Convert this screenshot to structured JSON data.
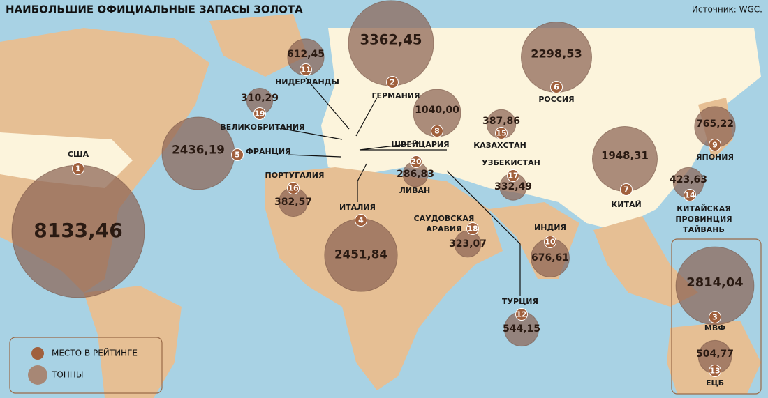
{
  "header": {
    "title": "НАИБОЛЬШИЕ ОФИЦИАЛЬНЫЕ ЗАПАСЫ ЗОЛОТА",
    "source": "Источник: WGC."
  },
  "legend": {
    "rank": "МЕСТО В РЕЙТИНГЕ",
    "tonnes": "ТОННЫ"
  },
  "countries": [
    {
      "name": [
        "США"
      ],
      "rank": 1,
      "tonnes": {
        "value": 8133.46,
        "label": "8133,46"
      }
    },
    {
      "name": [
        "ГЕРМАНИЯ"
      ],
      "rank": 2,
      "tonnes": {
        "value": 3362.45,
        "label": "3362,45"
      }
    },
    {
      "name": [
        "МВФ"
      ],
      "rank": 3,
      "tonnes": {
        "value": 2814.04,
        "label": "2814,04"
      }
    },
    {
      "name": [
        "ИТАЛИЯ"
      ],
      "rank": 4,
      "tonnes": {
        "value": 2451.84,
        "label": "2451,84"
      }
    },
    {
      "name": [
        "ФРАНЦИЯ"
      ],
      "rank": 5,
      "tonnes": {
        "value": 2436.19,
        "label": "2436,19"
      }
    },
    {
      "name": [
        "РОССИЯ"
      ],
      "rank": 6,
      "tonnes": {
        "value": 2298.53,
        "label": "2298,53"
      }
    },
    {
      "name": [
        "КИТАЙ"
      ],
      "rank": 7,
      "tonnes": {
        "value": 1948.31,
        "label": "1948,31"
      }
    },
    {
      "name": [
        "ШВЕЙЦАРИЯ"
      ],
      "rank": 8,
      "tonnes": {
        "value": 1040.0,
        "label": "1040,00"
      }
    },
    {
      "name": [
        "ЯПОНИЯ"
      ],
      "rank": 9,
      "tonnes": {
        "value": 765.22,
        "label": "765,22"
      }
    },
    {
      "name": [
        "ИНДИЯ"
      ],
      "rank": 10,
      "tonnes": {
        "value": 676.61,
        "label": "676,61"
      }
    },
    {
      "name": [
        "НИДЕРЛАНДЫ"
      ],
      "rank": 11,
      "tonnes": {
        "value": 612.45,
        "label": "612,45"
      }
    },
    {
      "name": [
        "ТУРЦИЯ"
      ],
      "rank": 12,
      "tonnes": {
        "value": 544.15,
        "label": "544,15"
      }
    },
    {
      "name": [
        "ЕЦБ"
      ],
      "rank": 13,
      "tonnes": {
        "value": 504.77,
        "label": "504,77"
      }
    },
    {
      "name": [
        "КИТАЙСКАЯ",
        "ПРОВИНЦИЯ",
        "ТАЙВАНЬ"
      ],
      "rank": 14,
      "tonnes": {
        "value": 423.63,
        "label": "423,63"
      }
    },
    {
      "name": [
        "КАЗАХСТАН"
      ],
      "rank": 15,
      "tonnes": {
        "value": 387.86,
        "label": "387,86"
      }
    },
    {
      "name": [
        "ПОРТУГАЛИЯ"
      ],
      "rank": 16,
      "tonnes": {
        "value": 382.57,
        "label": "382,57"
      }
    },
    {
      "name": [
        "УЗБЕКИСТАН"
      ],
      "rank": 17,
      "tonnes": {
        "value": 332.49,
        "label": "332,49"
      }
    },
    {
      "name": [
        "САУДОВСКАЯ",
        "АРАВИЯ"
      ],
      "rank": 18,
      "tonnes": {
        "value": 323.07,
        "label": "323,07"
      }
    },
    {
      "name": [
        "ВЕЛИКОБРИТАНИЯ"
      ],
      "rank": 19,
      "tonnes": {
        "value": 310.29,
        "label": "310,29"
      }
    },
    {
      "name": [
        "ЛИВАН"
      ],
      "rank": 20,
      "tonnes": {
        "value": 286.83,
        "label": "286,83"
      }
    }
  ]
}
